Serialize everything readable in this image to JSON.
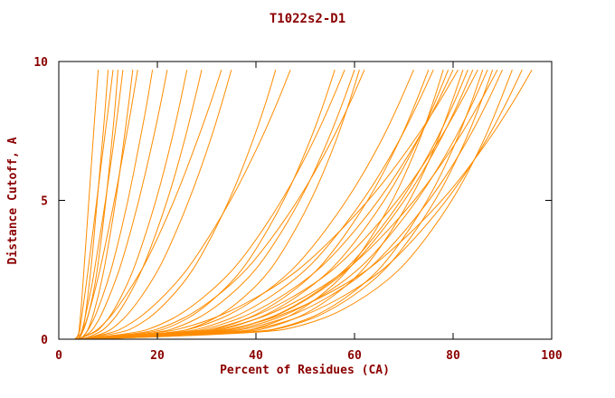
{
  "chart": {
    "text_color": "#8b0000",
    "axis_color": "#000000",
    "line_color": "#ff8c00",
    "background": "#ffffff"
  },
  "chart_data": {
    "type": "line",
    "title": "T1022s2-D1",
    "xlabel": "Percent of Residues (CA)",
    "ylabel": "Distance Cutoff, A",
    "xlim": [
      0,
      100
    ],
    "ylim": [
      0,
      10
    ],
    "grid": false,
    "legend": false,
    "x_ticks": [
      0,
      20,
      40,
      60,
      80,
      100
    ],
    "y_ticks": [
      0,
      5,
      10
    ],
    "y_samples": [
      0,
      0.2,
      0.5,
      1,
      2,
      3,
      5,
      7,
      8.5,
      9.7
    ],
    "series": [
      {
        "x": [
          3.6,
          4.1,
          4.2,
          4.5,
          4.9,
          5.3,
          6.1,
          6.9,
          7.5,
          8
        ]
      },
      {
        "x": [
          4.0,
          4.8,
          5.1,
          5.5,
          6.2,
          6.8,
          7.8,
          8.8,
          9.5,
          10
        ]
      },
      {
        "x": [
          3.4,
          4.2,
          4.4,
          4.8,
          5.6,
          6.3,
          7.7,
          9.1,
          10.2,
          11
        ]
      },
      {
        "x": [
          4.2,
          4.5,
          5.0,
          5.6,
          6.8,
          7.7,
          9.5,
          11.1,
          12.2,
          13
        ]
      },
      {
        "x": [
          4.6,
          5.5,
          6.3,
          7.2,
          8.6,
          9.7,
          11.6,
          13.1,
          14.2,
          15
        ]
      },
      {
        "x": [
          3.8,
          4.7,
          5.3,
          6.2,
          7.7,
          9.0,
          11.3,
          13.4,
          14.9,
          16
        ]
      },
      {
        "x": [
          3.2,
          4.7,
          5.4,
          6.2,
          7.4,
          8.2,
          9.6,
          10.7,
          11.5,
          12
        ]
      },
      {
        "x": [
          4.4,
          5.5,
          6.5,
          7.8,
          9.8,
          11.4,
          14.1,
          16.3,
          17.9,
          19
        ]
      },
      {
        "x": [
          4.1,
          6.2,
          7.5,
          9.0,
          11.3,
          13.2,
          16.3,
          18.9,
          20.7,
          22
        ]
      },
      {
        "x": [
          3.5,
          7.2,
          9.0,
          11.1,
          14.0,
          16.2,
          19.8,
          22.7,
          24.6,
          26
        ]
      },
      {
        "x": [
          4.8,
          8.0,
          10.1,
          12.4,
          15.6,
          18.1,
          22.1,
          25.3,
          27.4,
          29
        ]
      },
      {
        "x": [
          3.9,
          6.8,
          8.9,
          11.4,
          15.2,
          18.4,
          23.5,
          27.8,
          30.8,
          33
        ]
      },
      {
        "x": [
          5.0,
          9.3,
          11.8,
          14.6,
          18.6,
          21.7,
          26.5,
          30.5,
          33.1,
          35
        ]
      },
      {
        "x": [
          3.6,
          12.5,
          16.2,
          20.1,
          25.3,
          29.0,
          34.7,
          39.1,
          42.0,
          44
        ]
      },
      {
        "x": [
          4.3,
          10.6,
          14.1,
          18.1,
          23.8,
          28.1,
          35.0,
          40.6,
          44.3,
          47
        ]
      },
      {
        "x": [
          4.7,
          18.5,
          23.6,
          28.6,
          34.9,
          39.3,
          45.8,
          50.7,
          53.8,
          56
        ]
      },
      {
        "x": [
          3.8,
          15.4,
          20.5,
          25.8,
          32.7,
          37.8,
          45.4,
          51.4,
          55.2,
          58
        ]
      },
      {
        "x": [
          4.9,
          19.9,
          25.4,
          30.8,
          37.5,
          42.2,
          49.1,
          54.3,
          57.6,
          60
        ]
      },
      {
        "x": [
          4.4,
          17.1,
          22.4,
          28.0,
          35.3,
          40.6,
          48.7,
          55.0,
          59.1,
          62
        ]
      },
      {
        "x": [
          3.5,
          23.2,
          28.9,
          34.2,
          40.7,
          45.0,
          51.3,
          56.0,
          58.9,
          61
        ]
      },
      {
        "x": [
          4.0,
          22.9,
          29.6,
          36.2,
          44.4,
          50.2,
          58.6,
          65.1,
          69.1,
          72
        ]
      },
      {
        "x": [
          4.6,
          27.9,
          35.0,
          41.6,
          49.7,
          55.1,
          62.9,
          68.8,
          72.4,
          75
        ]
      },
      {
        "x": [
          3.7,
          24.4,
          31.4,
          38.3,
          47.0,
          53.1,
          61.9,
          68.7,
          72.9,
          76
        ]
      },
      {
        "x": [
          4.9,
          35.5,
          42.6,
          48.9,
          56.2,
          61.1,
          67.9,
          72.9,
          75.9,
          78
        ]
      },
      {
        "x": [
          4.2,
          29.3,
          36.7,
          43.8,
          52.2,
          58.0,
          66.3,
          72.5,
          76.3,
          79
        ]
      },
      {
        "x": [
          3.5,
          25.5,
          32.9,
          40.2,
          49.3,
          55.8,
          65.1,
          72.3,
          76.8,
          80
        ]
      },
      {
        "x": [
          4.7,
          20.3,
          27.5,
          35.0,
          45.0,
          52.1,
          63.1,
          71.6,
          77.1,
          81
        ]
      },
      {
        "x": [
          5.1,
          37.2,
          44.6,
          51.3,
          59.1,
          64.2,
          71.4,
          76.6,
          79.7,
          82
        ]
      },
      {
        "x": [
          3.9,
          31.0,
          38.7,
          46.1,
          55.0,
          61.0,
          69.7,
          76.2,
          80.2,
          83
        ]
      },
      {
        "x": [
          4.4,
          30.5,
          38.9,
          46.4,
          55.4,
          61.6,
          70.4,
          77.0,
          81.1,
          84
        ]
      },
      {
        "x": [
          3.6,
          26.5,
          34.5,
          42.3,
          52.1,
          59.0,
          69.0,
          76.7,
          81.5,
          85
        ]
      },
      {
        "x": [
          5.3,
          39.5,
          47.2,
          54.2,
          62.2,
          67.5,
          75.0,
          80.4,
          83.7,
          86
        ]
      },
      {
        "x": [
          4.1,
          32.0,
          40.2,
          48.0,
          57.4,
          63.8,
          72.9,
          79.8,
          84.0,
          87
        ]
      },
      {
        "x": [
          4.8,
          39.8,
          47.8,
          55.0,
          63.3,
          68.8,
          76.6,
          82.2,
          85.6,
          88
        ]
      },
      {
        "x": [
          3.7,
          28.0,
          36.3,
          44.5,
          54.7,
          61.9,
          72.4,
          80.4,
          85.4,
          89
        ]
      },
      {
        "x": [
          4.5,
          33.0,
          41.5,
          49.6,
          59.3,
          65.9,
          75.4,
          82.5,
          86.9,
          90
        ]
      },
      {
        "x": [
          5.0,
          41.5,
          49.8,
          57.4,
          66.1,
          71.9,
          80.0,
          85.9,
          89.4,
          92
        ]
      },
      {
        "x": [
          4.2,
          35.0,
          43.8,
          52.2,
          62.2,
          69.1,
          78.9,
          86.3,
          90.8,
          94
        ]
      },
      {
        "x": [
          3.8,
          29.6,
          38.6,
          47.5,
          58.6,
          66.5,
          78.1,
          86.6,
          92.1,
          96
        ]
      }
    ]
  }
}
